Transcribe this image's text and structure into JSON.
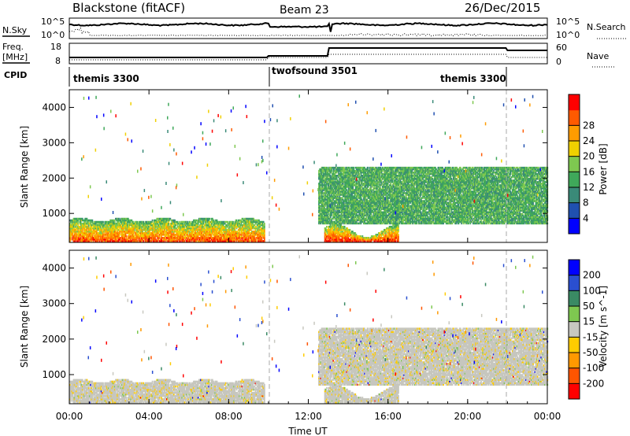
{
  "header": {
    "radar": "Blackstone (fitACF)",
    "beam": "Beam 23",
    "date": "26/Dec/2015"
  },
  "summary_panels": {
    "nsky": {
      "left_label": "N.Sky",
      "left_ticks": [
        "10^5",
        "10^0"
      ],
      "right_label": "N.Search",
      "right_ticks": [
        "10^5",
        "10^0"
      ]
    },
    "freq": {
      "left_label_line1": "Freq.",
      "left_label_line2": "[MHz]",
      "left_ticks": [
        "18",
        "8"
      ],
      "right_label": "Nave",
      "right_ticks": [
        "60",
        "0"
      ]
    },
    "cpid": {
      "label": "CPID",
      "segments": [
        {
          "name": "themis 3300",
          "start_hour": 0,
          "end_hour": 10
        },
        {
          "name": "twofsound 3501",
          "start_hour": 10,
          "end_hour": 22
        },
        {
          "name": "themis 3300",
          "start_hour": 22,
          "end_hour": 24
        }
      ]
    }
  },
  "colors": {
    "power": [
      "#0000ff",
      "#2050b0",
      "#3a8a78",
      "#3fa85a",
      "#7ec850",
      "#f0d000",
      "#ff9c00",
      "#ff5a00",
      "#ff0000"
    ],
    "velocity": [
      "#0000ff",
      "#2a4fd0",
      "#3a8a64",
      "#7ec850",
      "#c8c8c0",
      "#ffcc00",
      "#ff9900",
      "#ff5500",
      "#ff0000"
    ],
    "ground_scatter": "#c6c6be"
  },
  "chart_data": [
    {
      "type": "heatmap",
      "name": "power-panel",
      "ylabel": "Slant Range [km]",
      "xlabel": "",
      "ylim": [
        180,
        4500
      ],
      "yticks": [
        "1000",
        "2000",
        "3000",
        "4000"
      ],
      "xlim": [
        0,
        24
      ],
      "colorbar": {
        "label": "Power [dB]",
        "ticks": [
          "4",
          "8",
          "12",
          "16",
          "20",
          "24",
          "28"
        ],
        "range": [
          0,
          30
        ]
      },
      "regions": [
        {
          "start_hour": 0.0,
          "end_hour": 9.8,
          "min_km": 200,
          "max_km": 850,
          "mean_db": 18
        },
        {
          "start_hour": 12.8,
          "end_hour": 16.5,
          "min_km": 200,
          "max_km": 700,
          "mean_db": 20
        },
        {
          "start_hour": 12.5,
          "end_hour": 24.0,
          "min_km": 700,
          "max_km": 2300,
          "mean_db": 12
        }
      ]
    },
    {
      "type": "heatmap",
      "name": "velocity-panel",
      "ylabel": "Slant Range [km]",
      "xlabel": "Time UT",
      "ylim": [
        180,
        4500
      ],
      "yticks": [
        "1000",
        "2000",
        "3000",
        "4000"
      ],
      "xlim": [
        0,
        24
      ],
      "xticks": [
        "00:00",
        "04:00",
        "08:00",
        "12:00",
        "16:00",
        "20:00",
        "00:00"
      ],
      "colorbar": {
        "label": "Velocity [m s^-1]",
        "ticks": [
          "200",
          "100",
          "50",
          "15",
          "-15",
          "-50",
          "-100",
          "-200"
        ],
        "range": [
          -250,
          250
        ]
      },
      "regions": [
        {
          "start_hour": 0.0,
          "end_hour": 9.8,
          "min_km": 200,
          "max_km": 850,
          "mean_velocity": 0
        },
        {
          "start_hour": 12.8,
          "end_hour": 16.5,
          "min_km": 200,
          "max_km": 700,
          "mean_velocity": 0
        },
        {
          "start_hour": 12.5,
          "end_hour": 24.0,
          "min_km": 700,
          "max_km": 2300,
          "mean_velocity": 0
        }
      ]
    }
  ]
}
